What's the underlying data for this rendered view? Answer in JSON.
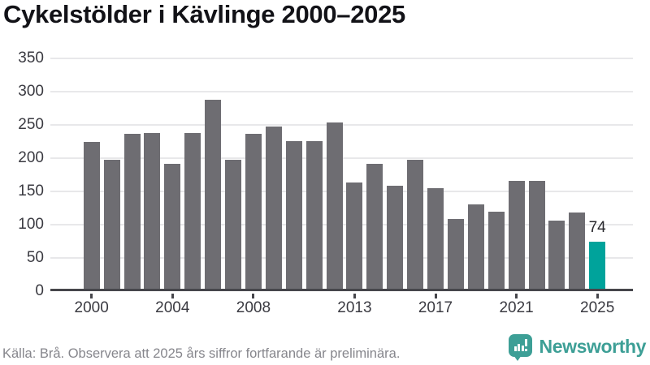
{
  "title": "Cykelstölder i Kävlinge 2000–2025",
  "footer": {
    "source": "Källa: Brå. Observera att 2025 års siffror fortfarande är preliminära.",
    "brand": "Newsworthy"
  },
  "colors": {
    "bar": "#6e6d72",
    "bar_highlight": "#00a39b",
    "grid": "#e8e8ea",
    "axis": "#46464b",
    "title_text": "#121217",
    "tick_text": "#3a3a41",
    "value_label_text": "#26262b",
    "footer_text": "#86868c",
    "brand": "#3d9f96"
  },
  "chart_data": {
    "type": "bar",
    "title": "Cykelstölder i Kävlinge 2000–2025",
    "xlabel": "",
    "ylabel": "",
    "ylim": [
      0,
      350
    ],
    "yticks": [
      0,
      50,
      100,
      150,
      200,
      250,
      300,
      350
    ],
    "xtick_labels": [
      2000,
      2004,
      2008,
      2013,
      2017,
      2021,
      2025
    ],
    "grid": true,
    "legend": "none",
    "categories": [
      2000,
      2001,
      2002,
      2003,
      2004,
      2005,
      2006,
      2007,
      2008,
      2009,
      2010,
      2011,
      2012,
      2013,
      2014,
      2015,
      2016,
      2017,
      2018,
      2019,
      2020,
      2021,
      2022,
      2023,
      2024,
      2025
    ],
    "values": [
      225,
      198,
      236,
      238,
      191,
      238,
      288,
      198,
      237,
      248,
      226,
      226,
      254,
      163,
      192,
      158,
      197,
      155,
      108,
      130,
      119,
      166,
      166,
      106,
      118,
      74
    ],
    "highlight": {
      "category": 2025,
      "value": 74,
      "label": "74"
    }
  }
}
